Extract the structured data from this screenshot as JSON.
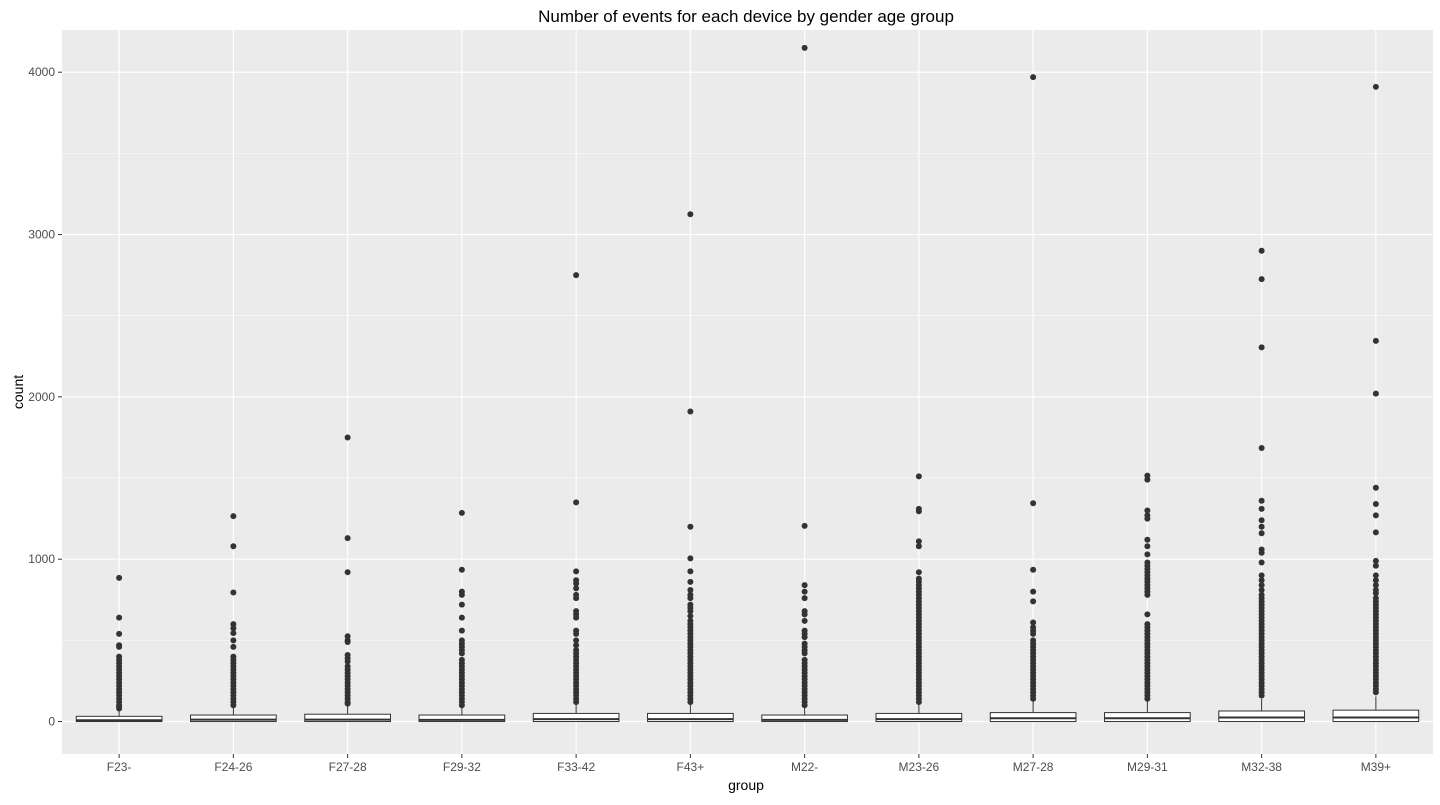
{
  "chart_data": {
    "type": "boxplot",
    "title": "Number of events for each device by gender age group",
    "xlabel": "group",
    "ylabel": "count",
    "ylim": [
      -200,
      4260
    ],
    "yticks": [
      0,
      1000,
      2000,
      3000,
      4000
    ],
    "grid": true,
    "colors": {
      "panel_background": "#ebebeb",
      "grid_major": "#ffffff",
      "box_fill": "#ffffff",
      "box_stroke": "#333333",
      "outlier": "#333333",
      "tick_label": "#4d4d4d"
    },
    "categories": [
      "F23-",
      "F24-26",
      "F27-28",
      "F29-32",
      "F33-42",
      "F43+",
      "M22-",
      "M23-26",
      "M27-28",
      "M29-31",
      "M32-38",
      "M39+"
    ],
    "boxes": [
      {
        "q1": 0,
        "median": 8,
        "q3": 32,
        "whisker_low": 0,
        "whisker_high": 75,
        "outliers": [
          885,
          640,
          540,
          470,
          460,
          400,
          380,
          360,
          340,
          320,
          300,
          280,
          260,
          240,
          220,
          200,
          180,
          160,
          140,
          120,
          100,
          90,
          80
        ]
      },
      {
        "q1": 0,
        "median": 12,
        "q3": 40,
        "whisker_low": 0,
        "whisker_high": 90,
        "outliers": [
          1265,
          1080,
          795,
          600,
          575,
          545,
          500,
          460,
          400,
          380,
          360,
          340,
          320,
          300,
          280,
          260,
          240,
          220,
          200,
          180,
          160,
          140,
          120,
          100
        ]
      },
      {
        "q1": 0,
        "median": 12,
        "q3": 45,
        "whisker_low": 0,
        "whisker_high": 100,
        "outliers": [
          1750,
          1130,
          920,
          525,
          500,
          490,
          410,
          390,
          370,
          340,
          320,
          300,
          280,
          260,
          240,
          220,
          200,
          180,
          160,
          140,
          120,
          110
        ]
      },
      {
        "q1": 0,
        "median": 10,
        "q3": 40,
        "whisker_low": 0,
        "whisker_high": 90,
        "outliers": [
          1285,
          935,
          800,
          780,
          720,
          640,
          560,
          500,
          480,
          460,
          440,
          420,
          380,
          360,
          340,
          320,
          300,
          280,
          260,
          240,
          220,
          200,
          180,
          160,
          140,
          120,
          100
        ]
      },
      {
        "q1": 0,
        "median": 15,
        "q3": 50,
        "whisker_low": 0,
        "whisker_high": 110,
        "outliers": [
          2750,
          1350,
          925,
          870,
          850,
          820,
          780,
          760,
          680,
          660,
          640,
          560,
          540,
          500,
          470,
          440,
          420,
          400,
          380,
          360,
          340,
          320,
          300,
          280,
          260,
          240,
          220,
          200,
          180,
          160,
          140,
          120
        ]
      },
      {
        "q1": 0,
        "median": 15,
        "q3": 50,
        "whisker_low": 0,
        "whisker_high": 110,
        "outliers": [
          3125,
          1910,
          1200,
          1005,
          925,
          860,
          810,
          780,
          760,
          720,
          700,
          680,
          650,
          620,
          600,
          580,
          560,
          540,
          520,
          500,
          480,
          460,
          440,
          420,
          400,
          380,
          360,
          340,
          320,
          300,
          280,
          260,
          240,
          220,
          200,
          180,
          160,
          140,
          120
        ]
      },
      {
        "q1": 0,
        "median": 10,
        "q3": 40,
        "whisker_low": 0,
        "whisker_high": 90,
        "outliers": [
          4150,
          1205,
          840,
          800,
          760,
          680,
          660,
          620,
          560,
          540,
          520,
          480,
          460,
          440,
          420,
          380,
          360,
          340,
          320,
          300,
          280,
          260,
          240,
          220,
          200,
          180,
          160,
          140,
          120,
          100
        ]
      },
      {
        "q1": 0,
        "median": 15,
        "q3": 50,
        "whisker_low": 0,
        "whisker_high": 110,
        "outliers": [
          1510,
          1310,
          1295,
          1110,
          1080,
          920,
          880,
          860,
          840,
          820,
          800,
          780,
          760,
          740,
          720,
          700,
          680,
          660,
          640,
          620,
          600,
          580,
          560,
          540,
          520,
          500,
          480,
          460,
          440,
          420,
          400,
          380,
          360,
          340,
          320,
          300,
          280,
          260,
          240,
          220,
          200,
          180,
          160,
          140,
          120
        ]
      },
      {
        "q1": 0,
        "median": 20,
        "q3": 55,
        "whisker_low": 0,
        "whisker_high": 130,
        "outliers": [
          3970,
          1345,
          935,
          800,
          740,
          610,
          580,
          560,
          540,
          500,
          480,
          460,
          440,
          420,
          400,
          380,
          360,
          340,
          320,
          300,
          280,
          260,
          240,
          220,
          200,
          180,
          160,
          140
        ]
      },
      {
        "q1": 0,
        "median": 20,
        "q3": 55,
        "whisker_low": 0,
        "whisker_high": 130,
        "outliers": [
          1515,
          1490,
          1300,
          1270,
          1250,
          1120,
          1080,
          1030,
          980,
          960,
          940,
          920,
          900,
          880,
          860,
          840,
          820,
          800,
          780,
          660,
          600,
          580,
          560,
          540,
          520,
          500,
          480,
          460,
          440,
          420,
          400,
          380,
          360,
          340,
          320,
          300,
          280,
          260,
          240,
          220,
          200,
          180,
          160,
          140
        ]
      },
      {
        "q1": 0,
        "median": 25,
        "q3": 65,
        "whisker_low": 0,
        "whisker_high": 140,
        "outliers": [
          2900,
          2725,
          2305,
          1685,
          1360,
          1310,
          1240,
          1200,
          1160,
          1060,
          1040,
          980,
          900,
          870,
          840,
          810,
          780,
          760,
          740,
          720,
          700,
          680,
          660,
          640,
          620,
          600,
          580,
          560,
          540,
          520,
          500,
          480,
          460,
          440,
          420,
          400,
          380,
          360,
          340,
          320,
          300,
          280,
          260,
          240,
          220,
          200,
          180,
          160
        ]
      },
      {
        "q1": 0,
        "median": 25,
        "q3": 70,
        "whisker_low": 0,
        "whisker_high": 155,
        "outliers": [
          3910,
          2345,
          2020,
          1440,
          1340,
          1270,
          1165,
          990,
          960,
          900,
          870,
          840,
          810,
          790,
          760,
          740,
          720,
          700,
          680,
          660,
          640,
          620,
          600,
          580,
          560,
          540,
          520,
          500,
          480,
          460,
          440,
          420,
          400,
          380,
          360,
          340,
          320,
          300,
          280,
          260,
          240,
          220,
          200,
          180
        ]
      }
    ]
  }
}
